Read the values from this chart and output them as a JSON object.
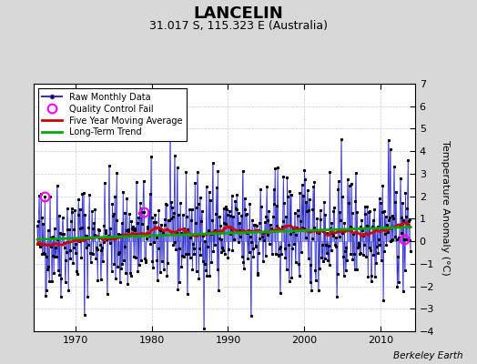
{
  "title": "LANCELIN",
  "subtitle": "31.017 S, 115.323 E (Australia)",
  "ylabel": "Temperature Anomaly (°C)",
  "credit": "Berkeley Earth",
  "ylim": [
    -4,
    7
  ],
  "yticks": [
    -4,
    -3,
    -2,
    -1,
    0,
    1,
    2,
    3,
    4,
    5,
    6,
    7
  ],
  "xlim": [
    1964.5,
    2014.5
  ],
  "xticks": [
    1970,
    1980,
    1990,
    2000,
    2010
  ],
  "background_color": "#d8d8d8",
  "plot_bg_color": "#ffffff",
  "raw_line_color": "#3333cc",
  "raw_fill_color": "#8888ee",
  "raw_dot_color": "#000000",
  "ma_color": "#cc0000",
  "trend_color": "#00aa00",
  "qc_color": "#ff00ff",
  "grid_color": "#cccccc",
  "title_fontsize": 13,
  "subtitle_fontsize": 9,
  "label_fontsize": 8,
  "tick_fontsize": 8
}
